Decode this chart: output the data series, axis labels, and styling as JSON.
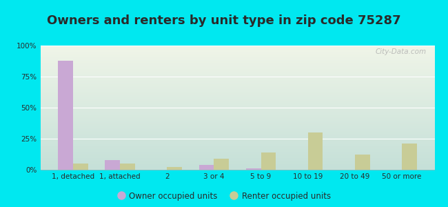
{
  "title": "Owners and renters by unit type in zip code 75287",
  "categories": [
    "1, detached",
    "1, attached",
    "2",
    "3 or 4",
    "5 to 9",
    "10 to 19",
    "20 to 49",
    "50 or more"
  ],
  "owner_values": [
    88,
    8,
    0,
    4,
    1,
    0,
    0,
    0
  ],
  "renter_values": [
    5,
    5,
    2,
    9,
    14,
    30,
    12,
    21
  ],
  "owner_color": "#c9a8d4",
  "renter_color": "#c8cc96",
  "background_outer": "#00e8f0",
  "background_inner_top": "#f0f5e8",
  "background_inner_bottom": "#c5e0d8",
  "ylim": [
    0,
    100
  ],
  "yticks": [
    0,
    25,
    50,
    75,
    100
  ],
  "ytick_labels": [
    "0%",
    "25%",
    "50%",
    "75%",
    "100%"
  ],
  "legend_owner": "Owner occupied units",
  "legend_renter": "Renter occupied units",
  "title_fontsize": 13,
  "tick_fontsize": 7.5,
  "legend_fontsize": 8.5,
  "bar_width": 0.32,
  "watermark": "City-Data.com",
  "text_color": "#2a2a2a",
  "grid_color": "#ffffff",
  "axis_line_color": "#b0b0b0"
}
